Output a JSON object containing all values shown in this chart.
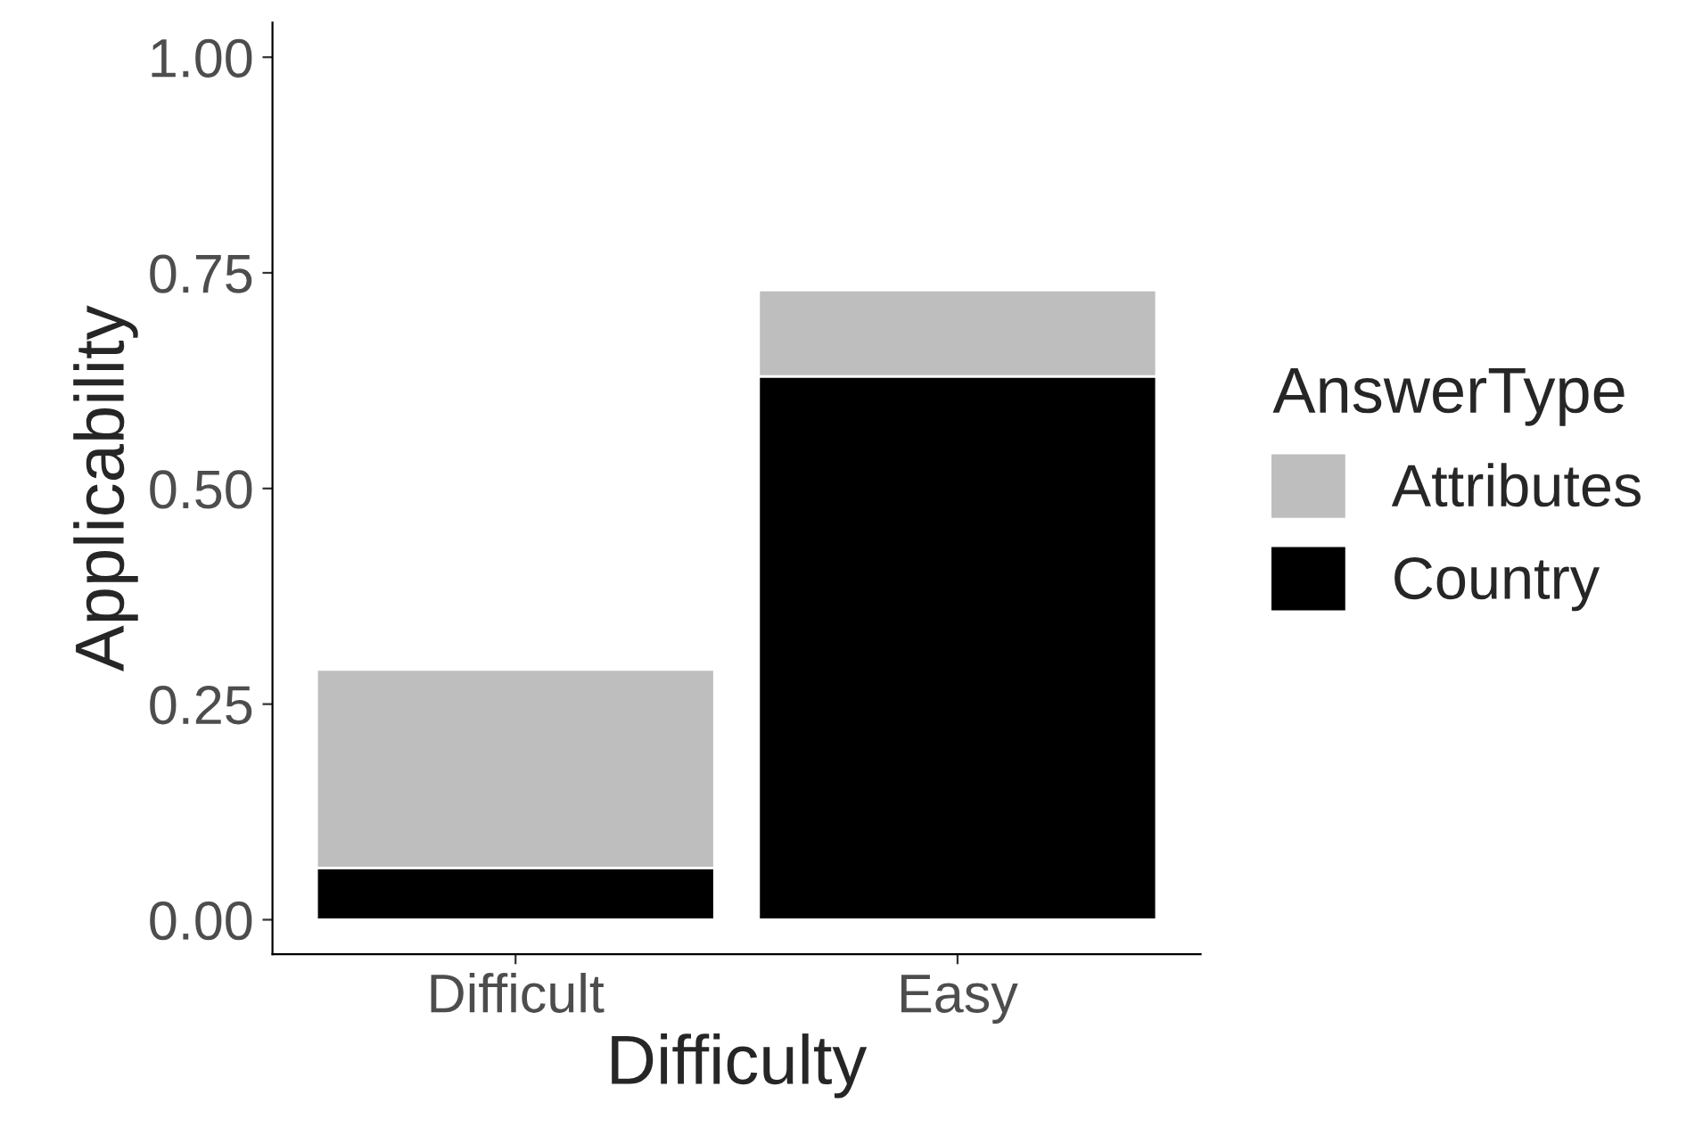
{
  "chart_data": {
    "type": "bar",
    "stacked": true,
    "xlabel": "Difficulty",
    "ylabel": "Applicability",
    "legend_title": "AnswerType",
    "legend": "right",
    "categories": [
      "Difficult",
      "Easy"
    ],
    "series": [
      {
        "name": "Country",
        "color": "#000000",
        "values": [
          0.06,
          0.63
        ]
      },
      {
        "name": "Attributes",
        "color": "#bebebe",
        "values": [
          0.23,
          0.1
        ]
      }
    ],
    "ylim": [
      -0.04,
      1.04
    ],
    "yticks": [
      {
        "value": 0,
        "label": "0.00"
      },
      {
        "value": 0.25,
        "label": "0.25"
      },
      {
        "value": 0.5,
        "label": "0.50"
      },
      {
        "value": 0.75,
        "label": "0.75"
      },
      {
        "value": 1,
        "label": "1.00"
      }
    ],
    "grid": false
  }
}
